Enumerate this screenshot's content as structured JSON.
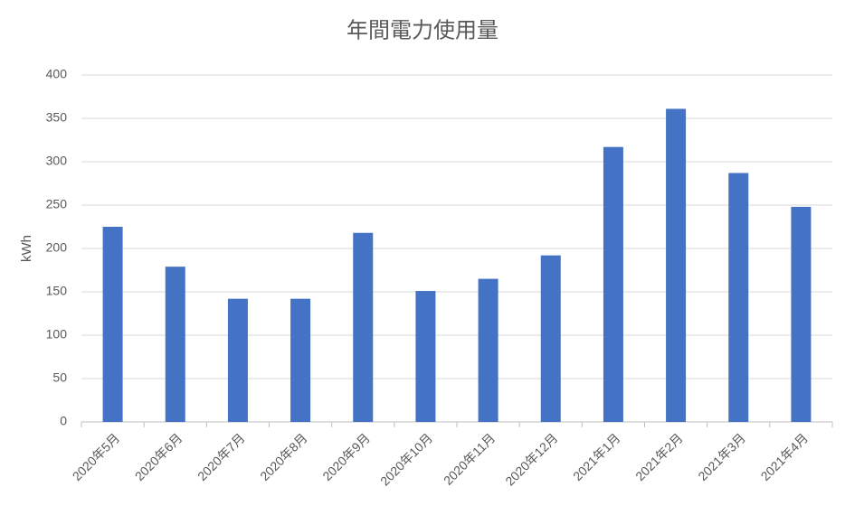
{
  "chart_data": {
    "type": "bar",
    "title": "年間電力使用量",
    "y_label": "kWh",
    "categories": [
      "2020年5月",
      "2020年6月",
      "2020年7月",
      "2020年8月",
      "2020年9月",
      "2020年10月",
      "2020年11月",
      "2020年12月",
      "2021年1月",
      "2021年2月",
      "2021年3月",
      "2021年4月"
    ],
    "values": [
      225,
      179,
      142,
      142,
      218,
      151,
      165,
      192,
      317,
      361,
      287,
      248
    ],
    "color": "#4472c4",
    "ylim": [
      0,
      400
    ],
    "yticks": [
      0,
      50,
      100,
      150,
      200,
      250,
      300,
      350,
      400
    ],
    "grid": true
  }
}
